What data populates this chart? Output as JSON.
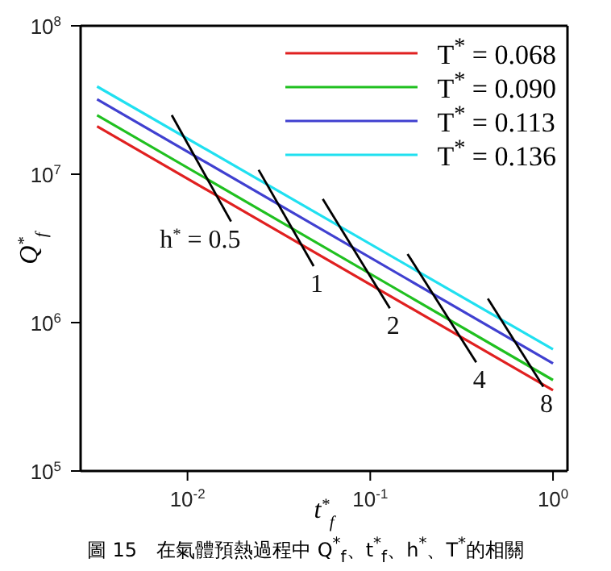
{
  "chart_data": {
    "type": "line",
    "xlabel": "t$^{*}$$_{f}$",
    "ylabel": "Q$^{*}$$_{f}$",
    "log": "xy",
    "xlim": [
      0.0026,
      1.2
    ],
    "ylim": [
      100000,
      100000000
    ],
    "xticks": [
      {
        "value": 0.01,
        "label": "10$^{-2}$"
      },
      {
        "value": 0.1,
        "label": "10$^{-1}$"
      },
      {
        "value": 1,
        "label": "10$^{0}$"
      }
    ],
    "yticks": [
      {
        "value": 100000,
        "label": "10$^{5}$"
      },
      {
        "value": 1000000,
        "label": "10$^{6}$"
      },
      {
        "value": 10000000,
        "label": "10$^{7}$"
      },
      {
        "value": 100000000,
        "label": "10$^{8}$"
      }
    ],
    "legend": "top right",
    "grid": false,
    "marker": "none",
    "line_style": "solid",
    "series": [
      {
        "name": "T$^{*}$ = 0.068",
        "color": "#e02020",
        "x": [
          0.0032,
          1
        ],
        "values": [
          21000000,
          350000
        ]
      },
      {
        "name": "T$^{*}$ = 0.090",
        "color": "#20c020",
        "x": [
          0.0032,
          1
        ],
        "values": [
          25000000,
          410000
        ]
      },
      {
        "name": "T$^{*}$ = 0.113",
        "color": "#4040d0",
        "x": [
          0.0032,
          1
        ],
        "values": [
          32000000,
          530000
        ]
      },
      {
        "name": "T$^{*}$ = 0.136",
        "color": "#20e0f0",
        "x": [
          0.0032,
          1
        ],
        "values": [
          39000000,
          660000
        ]
      },
      {
        "color": "#000000",
        "x": [
          0.0082,
          0.0173
        ],
        "values": [
          25000000,
          4800000
        ]
      },
      {
        "color": "#000000",
        "x": [
          0.0245,
          0.049
        ],
        "values": [
          10700000,
          2400000
        ]
      },
      {
        "color": "#000000",
        "x": [
          0.055,
          0.128
        ],
        "values": [
          6800000,
          1250000
        ]
      },
      {
        "color": "#000000",
        "x": [
          0.16,
          0.38
        ],
        "values": [
          2900000,
          540000
        ]
      },
      {
        "color": "#000000",
        "x": [
          0.44,
          0.885
        ],
        "values": [
          1450000,
          370000
        ]
      }
    ],
    "annotations": [
      {
        "text": "h$^{*}$ = 0.5",
        "x": 0.0173,
        "y": 4800000
      },
      {
        "text": "1",
        "x": 0.049,
        "y": 2400000
      },
      {
        "text": "2",
        "x": 0.128,
        "y": 1250000
      },
      {
        "text": "4",
        "x": 0.38,
        "y": 540000
      },
      {
        "text": "8",
        "x": 0.885,
        "y": 370000
      },
      "圖 15　在氣體預熱過程中 Q$^{*}$$_{f}$、t$^{*}$$_{f}$、h$^{*}$、T$^{*}$的相關"
    ]
  }
}
